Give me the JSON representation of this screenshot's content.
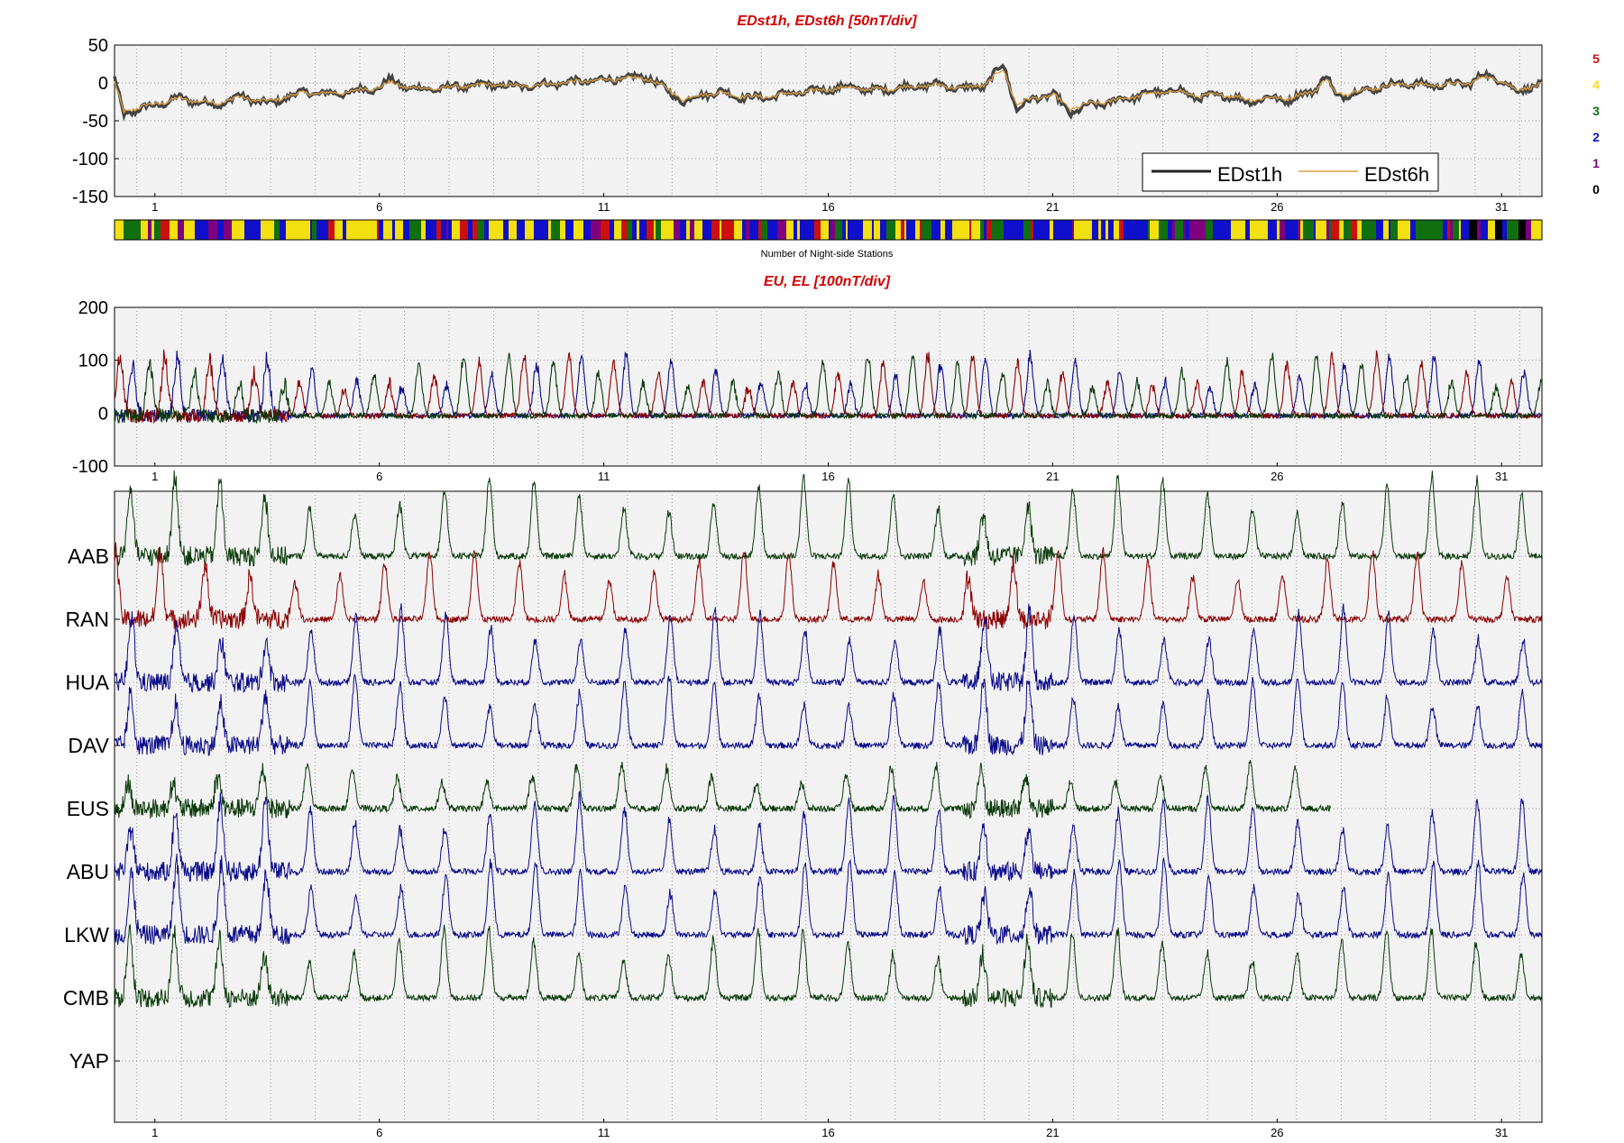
{
  "chart_data": [
    {
      "type": "line",
      "title": "EDst1h, EDst6h [50nT/div]",
      "ylim": [
        -150,
        50
      ],
      "yticks": [
        50,
        0,
        -50,
        -100,
        -150
      ],
      "xlim": [
        0.1,
        31.9
      ],
      "xticks": [
        1,
        6,
        11,
        16,
        21,
        26,
        31
      ],
      "grid": true,
      "legend_position": "bottom-right",
      "series": [
        {
          "name": "EDst1h",
          "color": "#444444"
        },
        {
          "name": "EDst6h",
          "color": "#e0a040"
        }
      ],
      "x": [
        0.1,
        0.3,
        0.6,
        1.0,
        1.5,
        2.0,
        2.4,
        2.8,
        3.2,
        3.6,
        4.0,
        4.5,
        5.0,
        5.5,
        5.9,
        6.2,
        6.6,
        7.0,
        7.5,
        8.0,
        8.5,
        9.0,
        9.5,
        10.0,
        10.5,
        11.0,
        11.5,
        12.0,
        12.4,
        12.8,
        13.2,
        13.6,
        14.0,
        14.5,
        15.0,
        15.5,
        16.0,
        16.5,
        17.0,
        17.5,
        18.0,
        18.5,
        19.0,
        19.5,
        19.9,
        20.2,
        20.6,
        21.0,
        21.4,
        21.8,
        22.3,
        22.8,
        23.3,
        23.8,
        24.3,
        24.8,
        25.3,
        25.8,
        26.3,
        26.8,
        27.1,
        27.3,
        27.8,
        28.3,
        28.8,
        29.3,
        29.8,
        30.3,
        30.6,
        31.0,
        31.3,
        31.6,
        31.9
      ],
      "values": [
        5,
        -42,
        -35,
        -30,
        -20,
        -25,
        -30,
        -18,
        -22,
        -28,
        -16,
        -12,
        -15,
        -10,
        -8,
        3,
        -5,
        -9,
        -6,
        -4,
        -2,
        -5,
        -3,
        0,
        2,
        4,
        6,
        8,
        -10,
        -25,
        -15,
        -12,
        -18,
        -20,
        -15,
        -12,
        -8,
        -5,
        -10,
        -7,
        -4,
        -2,
        -8,
        -3,
        25,
        -35,
        -20,
        -15,
        -40,
        -30,
        -25,
        -18,
        -12,
        -10,
        -20,
        -15,
        -25,
        -20,
        -22,
        -10,
        10,
        -18,
        -12,
        -5,
        0,
        -3,
        -2,
        0,
        10,
        5,
        -12,
        -5,
        -3
      ],
      "values_6h": [
        0,
        -38,
        -33,
        -28,
        -21,
        -24,
        -27,
        -19,
        -22,
        -25,
        -16,
        -13,
        -14,
        -10,
        -7,
        0,
        -5,
        -8,
        -6,
        -4,
        -2,
        -4,
        -3,
        0,
        2,
        4,
        6,
        6,
        -8,
        -22,
        -15,
        -13,
        -17,
        -19,
        -15,
        -12,
        -8,
        -6,
        -9,
        -7,
        -4,
        -3,
        -7,
        -2,
        18,
        -28,
        -20,
        -16,
        -34,
        -28,
        -24,
        -18,
        -13,
        -11,
        -18,
        -15,
        -22,
        -20,
        -20,
        -11,
        6,
        -15,
        -11,
        -5,
        -1,
        -3,
        -2,
        0,
        8,
        4,
        -10,
        -5,
        -3
      ]
    },
    {
      "type": "heatmap",
      "label": "Number of Night-side Stations",
      "colorbar": {
        "keys": [
          {
            "value": "5",
            "color": "#cc1010"
          },
          {
            "value": "4",
            "color": "#f2e010"
          },
          {
            "value": "3",
            "color": "#107010"
          },
          {
            "value": "2",
            "color": "#1010cc"
          },
          {
            "value": "1",
            "color": "#800080"
          },
          {
            "value": "0",
            "color": "#000000"
          }
        ]
      }
    },
    {
      "type": "line",
      "title": "EU, EL   [100nT/div]",
      "ylim": [
        -100,
        200
      ],
      "yticks": [
        200,
        100,
        0,
        -100
      ],
      "xticks": [
        1,
        6,
        11,
        16,
        21,
        26,
        31
      ],
      "grid": true,
      "series": [
        {
          "color": "#0a0a8a"
        },
        {
          "color": "#8b0000"
        },
        {
          "color": "#0a3a0a"
        }
      ]
    },
    {
      "type": "line",
      "stations": [
        "AAB",
        "RAN",
        "HUA",
        "DAV",
        "EUS",
        "ABU",
        "LKW",
        "CMB",
        "YAP"
      ],
      "station_colors": [
        "#0a3a0a",
        "#8b0000",
        "#0a0a8a",
        "#0a0a8a",
        "#0a3a0a",
        "#0a0a8a",
        "#0a0a8a",
        "#0a3a0a",
        "#0a3a0a"
      ],
      "xticks": [
        1,
        6,
        11,
        16,
        21,
        26,
        31
      ],
      "grid": true
    }
  ]
}
